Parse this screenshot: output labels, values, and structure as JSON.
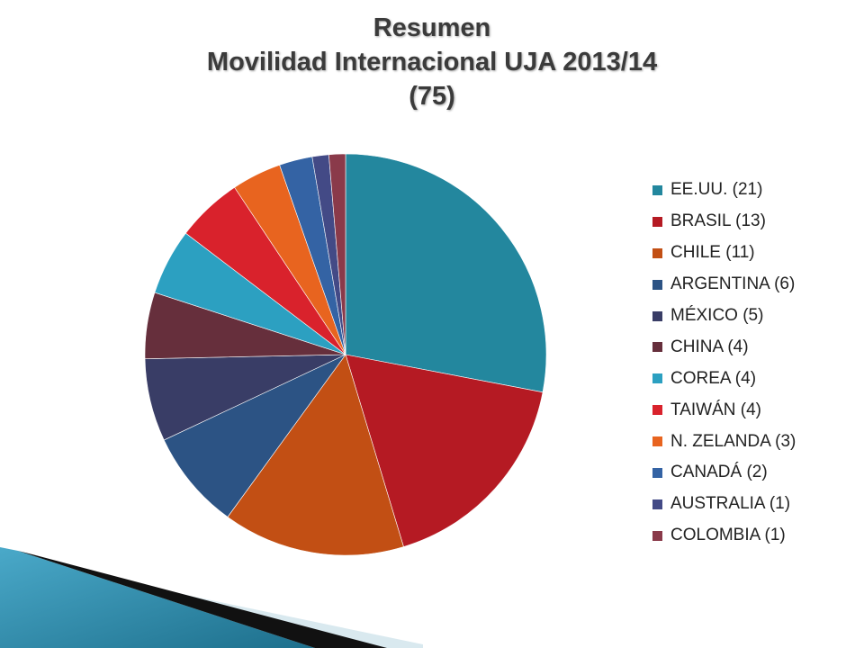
{
  "title": {
    "line1": "Resumen",
    "line2": "Movilidad Internacional UJA 2013/14",
    "line3": "(75)"
  },
  "chart_data": {
    "type": "pie",
    "title": "Resumen Movilidad Internacional UJA 2013/14 (75)",
    "total": 75,
    "legend_position": "right",
    "categories": [
      "EE.UU.",
      "BRASIL",
      "CHILE",
      "ARGENTINA",
      "MÉXICO",
      "CHINA",
      "COREA",
      "TAIWÁN",
      "N. ZELANDA",
      "CANADÁ",
      "AUSTRALIA",
      "COLOMBIA"
    ],
    "values": [
      21,
      13,
      11,
      6,
      5,
      4,
      4,
      4,
      3,
      2,
      1,
      1
    ],
    "legend_labels": [
      "EE.UU. (21)",
      "BRASIL (13)",
      "CHILE (11)",
      "ARGENTINA (6)",
      "MÉXICO (5)",
      "CHINA (4)",
      "COREA (4)",
      "TAIWÁN (4)",
      "N. ZELANDA (3)",
      "CANADÁ (2)",
      "AUSTRALIA (1)",
      "COLOMBIA (1)"
    ],
    "colors": [
      "#23879E",
      "#B51A23",
      "#C24F14",
      "#2C5384",
      "#393D66",
      "#662F3C",
      "#2CA0C1",
      "#D9222C",
      "#E8641F",
      "#3463A4",
      "#434A86",
      "#8A3A4A"
    ]
  }
}
